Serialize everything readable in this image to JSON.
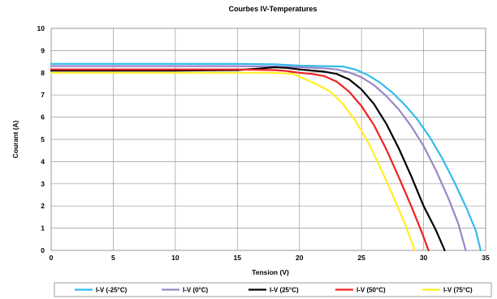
{
  "chart_data": {
    "type": "line",
    "title": "Courbes IV-Temperatures",
    "xlabel": "Tension (V)",
    "ylabel": "Courant (A)",
    "xlim": [
      0,
      35
    ],
    "ylim": [
      0,
      10
    ],
    "xticks": [
      0,
      5,
      10,
      15,
      20,
      25,
      30,
      35
    ],
    "yticks": [
      0,
      1,
      2,
      3,
      4,
      5,
      6,
      7,
      8,
      9,
      10
    ],
    "grid": true,
    "legend_position": "bottom",
    "series": [
      {
        "name": "I-V (-25°C)",
        "color": "#33bbee",
        "points": [
          [
            0,
            8.4
          ],
          [
            5,
            8.4
          ],
          [
            10,
            8.4
          ],
          [
            15,
            8.4
          ],
          [
            18,
            8.38
          ],
          [
            20,
            8.32
          ],
          [
            22,
            8.3
          ],
          [
            23.5,
            8.28
          ],
          [
            24.5,
            8.15
          ],
          [
            25.5,
            7.9
          ],
          [
            26.5,
            7.55
          ],
          [
            27.5,
            7.1
          ],
          [
            28.5,
            6.55
          ],
          [
            29.5,
            5.9
          ],
          [
            30.5,
            5.1
          ],
          [
            31.5,
            4.15
          ],
          [
            32.5,
            3.05
          ],
          [
            33.5,
            1.85
          ],
          [
            34.2,
            0.9
          ],
          [
            34.6,
            0
          ]
        ]
      },
      {
        "name": "I-V (0°C)",
        "color": "#9a86c4",
        "points": [
          [
            0,
            8.3
          ],
          [
            5,
            8.3
          ],
          [
            10,
            8.3
          ],
          [
            15,
            8.3
          ],
          [
            18,
            8.28
          ],
          [
            20,
            8.25
          ],
          [
            22,
            8.2
          ],
          [
            23,
            8.15
          ],
          [
            24,
            8.02
          ],
          [
            25,
            7.8
          ],
          [
            26,
            7.45
          ],
          [
            27,
            6.95
          ],
          [
            28,
            6.35
          ],
          [
            29,
            5.6
          ],
          [
            30,
            4.7
          ],
          [
            31,
            3.6
          ],
          [
            32,
            2.35
          ],
          [
            32.8,
            1.2
          ],
          [
            33.4,
            0
          ]
        ]
      },
      {
        "name": "I-V (25°C)",
        "color": "#000000",
        "points": [
          [
            0,
            8.1
          ],
          [
            5,
            8.1
          ],
          [
            10,
            8.1
          ],
          [
            15,
            8.12
          ],
          [
            17,
            8.2
          ],
          [
            18,
            8.25
          ],
          [
            19,
            8.22
          ],
          [
            20,
            8.15
          ],
          [
            21,
            8.1
          ],
          [
            22,
            8.05
          ],
          [
            23,
            7.95
          ],
          [
            24,
            7.7
          ],
          [
            25,
            7.25
          ],
          [
            26,
            6.6
          ],
          [
            27,
            5.7
          ],
          [
            28,
            4.6
          ],
          [
            29,
            3.35
          ],
          [
            30,
            2.0
          ],
          [
            31,
            0.9
          ],
          [
            31.7,
            0
          ]
        ]
      },
      {
        "name": "I-V (50°C)",
        "color": "#ee2222",
        "points": [
          [
            0,
            8.15
          ],
          [
            5,
            8.15
          ],
          [
            10,
            8.15
          ],
          [
            15,
            8.15
          ],
          [
            18,
            8.12
          ],
          [
            19,
            8.08
          ],
          [
            20,
            8.0
          ],
          [
            21,
            7.95
          ],
          [
            22,
            7.85
          ],
          [
            23,
            7.6
          ],
          [
            24,
            7.15
          ],
          [
            25,
            6.5
          ],
          [
            26,
            5.65
          ],
          [
            27,
            4.55
          ],
          [
            28,
            3.3
          ],
          [
            29,
            2.0
          ],
          [
            29.8,
            0.9
          ],
          [
            30.4,
            0
          ]
        ]
      },
      {
        "name": "I-V (75°C)",
        "color": "#ffee22",
        "points": [
          [
            0,
            8.0
          ],
          [
            5,
            8.0
          ],
          [
            10,
            8.0
          ],
          [
            15,
            8.0
          ],
          [
            18,
            8.0
          ],
          [
            19.5,
            7.95
          ],
          [
            20.5,
            7.7
          ],
          [
            21.5,
            7.45
          ],
          [
            22.5,
            7.15
          ],
          [
            23.5,
            6.6
          ],
          [
            24.5,
            5.85
          ],
          [
            25.5,
            4.9
          ],
          [
            26.5,
            3.75
          ],
          [
            27.5,
            2.5
          ],
          [
            28.5,
            1.2
          ],
          [
            29.3,
            0
          ]
        ]
      }
    ]
  }
}
